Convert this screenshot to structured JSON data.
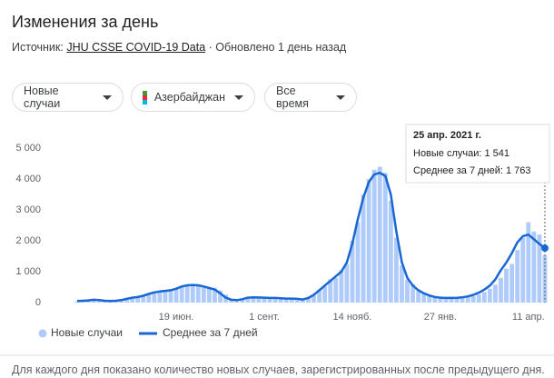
{
  "header": {
    "title": "Изменения за день",
    "source_label": "Источник:",
    "source_link": "JHU CSSE COVID-19 Data",
    "updated": "· Обновлено 1 день назад"
  },
  "filters": [
    "Новые случаи",
    "Азербайджан",
    "Все время"
  ],
  "tooltip": {
    "date": "25 апр. 2021 г.",
    "lines": [
      "Новые случаи: 1 541",
      "Среднее за 7 дней: 1 763"
    ]
  },
  "footnote": "Для каждого дня показано количество новых случаев, зарегистрированных после предыдущего дня.",
  "chart_data": {
    "type": "bar",
    "categories": [
      null,
      null,
      null,
      null,
      null,
      null,
      null,
      null,
      null,
      null,
      null,
      null,
      null,
      null,
      null,
      null,
      null,
      null,
      "19 июн.",
      null,
      null,
      null,
      null,
      null,
      null,
      null,
      null,
      null,
      null,
      null,
      null,
      null,
      null,
      null,
      "1 сент.",
      null,
      null,
      null,
      null,
      null,
      null,
      null,
      null,
      null,
      null,
      null,
      null,
      null,
      null,
      null,
      "14 нояб.",
      null,
      null,
      null,
      null,
      null,
      null,
      null,
      null,
      null,
      null,
      null,
      null,
      null,
      null,
      null,
      "27 янв.",
      null,
      null,
      null,
      null,
      null,
      null,
      null,
      null,
      null,
      null,
      null,
      null,
      null,
      null,
      null,
      "11 апр.",
      null,
      null,
      null
    ],
    "series": [
      {
        "name": "Новые случаи",
        "type": "bar",
        "color": "#aecbfa",
        "values": [
          40,
          70,
          60,
          100,
          90,
          50,
          40,
          70,
          90,
          110,
          170,
          190,
          200,
          300,
          310,
          370,
          400,
          380,
          470,
          500,
          590,
          560,
          580,
          540,
          450,
          480,
          390,
          260,
          110,
          70,
          100,
          170,
          180,
          150,
          170,
          140,
          160,
          130,
          140,
          120,
          130,
          90,
          170,
          230,
          420,
          520,
          750,
          800,
          1050,
          1250,
          2000,
          2600,
          3500,
          4000,
          4300,
          4400,
          4200,
          3300,
          2100,
          1200,
          750,
          600,
          380,
          320,
          210,
          190,
          150,
          160,
          140,
          160,
          150,
          180,
          210,
          260,
          340,
          450,
          580,
          800,
          1100,
          1250,
          1700,
          2100,
          2600,
          2300,
          2200,
          1541
        ]
      },
      {
        "name": "Среднее за 7 дней",
        "type": "line",
        "color": "#1967d2",
        "values": [
          50,
          60,
          70,
          90,
          80,
          60,
          50,
          60,
          80,
          120,
          160,
          180,
          220,
          280,
          330,
          360,
          380,
          400,
          450,
          520,
          560,
          570,
          560,
          520,
          470,
          420,
          300,
          160,
          90,
          80,
          110,
          160,
          170,
          165,
          160,
          150,
          150,
          140,
          130,
          130,
          120,
          100,
          150,
          250,
          400,
          550,
          700,
          850,
          1000,
          1300,
          1900,
          2700,
          3400,
          3900,
          4150,
          4200,
          4100,
          3500,
          2300,
          1300,
          800,
          550,
          400,
          300,
          230,
          180,
          160,
          150,
          150,
          155,
          170,
          200,
          250,
          320,
          420,
          550,
          750,
          1050,
          1300,
          1600,
          1950,
          2150,
          2200,
          2050,
          1900,
          1763
        ]
      }
    ],
    "ylim": [
      0,
      5000
    ],
    "yticks": [
      0,
      {
        "value": 1000,
        "label": "1 000"
      },
      {
        "value": 2000,
        "label": "2 000"
      },
      {
        "value": 3000,
        "label": "3 000"
      },
      {
        "value": 4000,
        "label": "4 000"
      },
      {
        "value": 5000,
        "label": "5 000"
      }
    ],
    "grid": false
  }
}
